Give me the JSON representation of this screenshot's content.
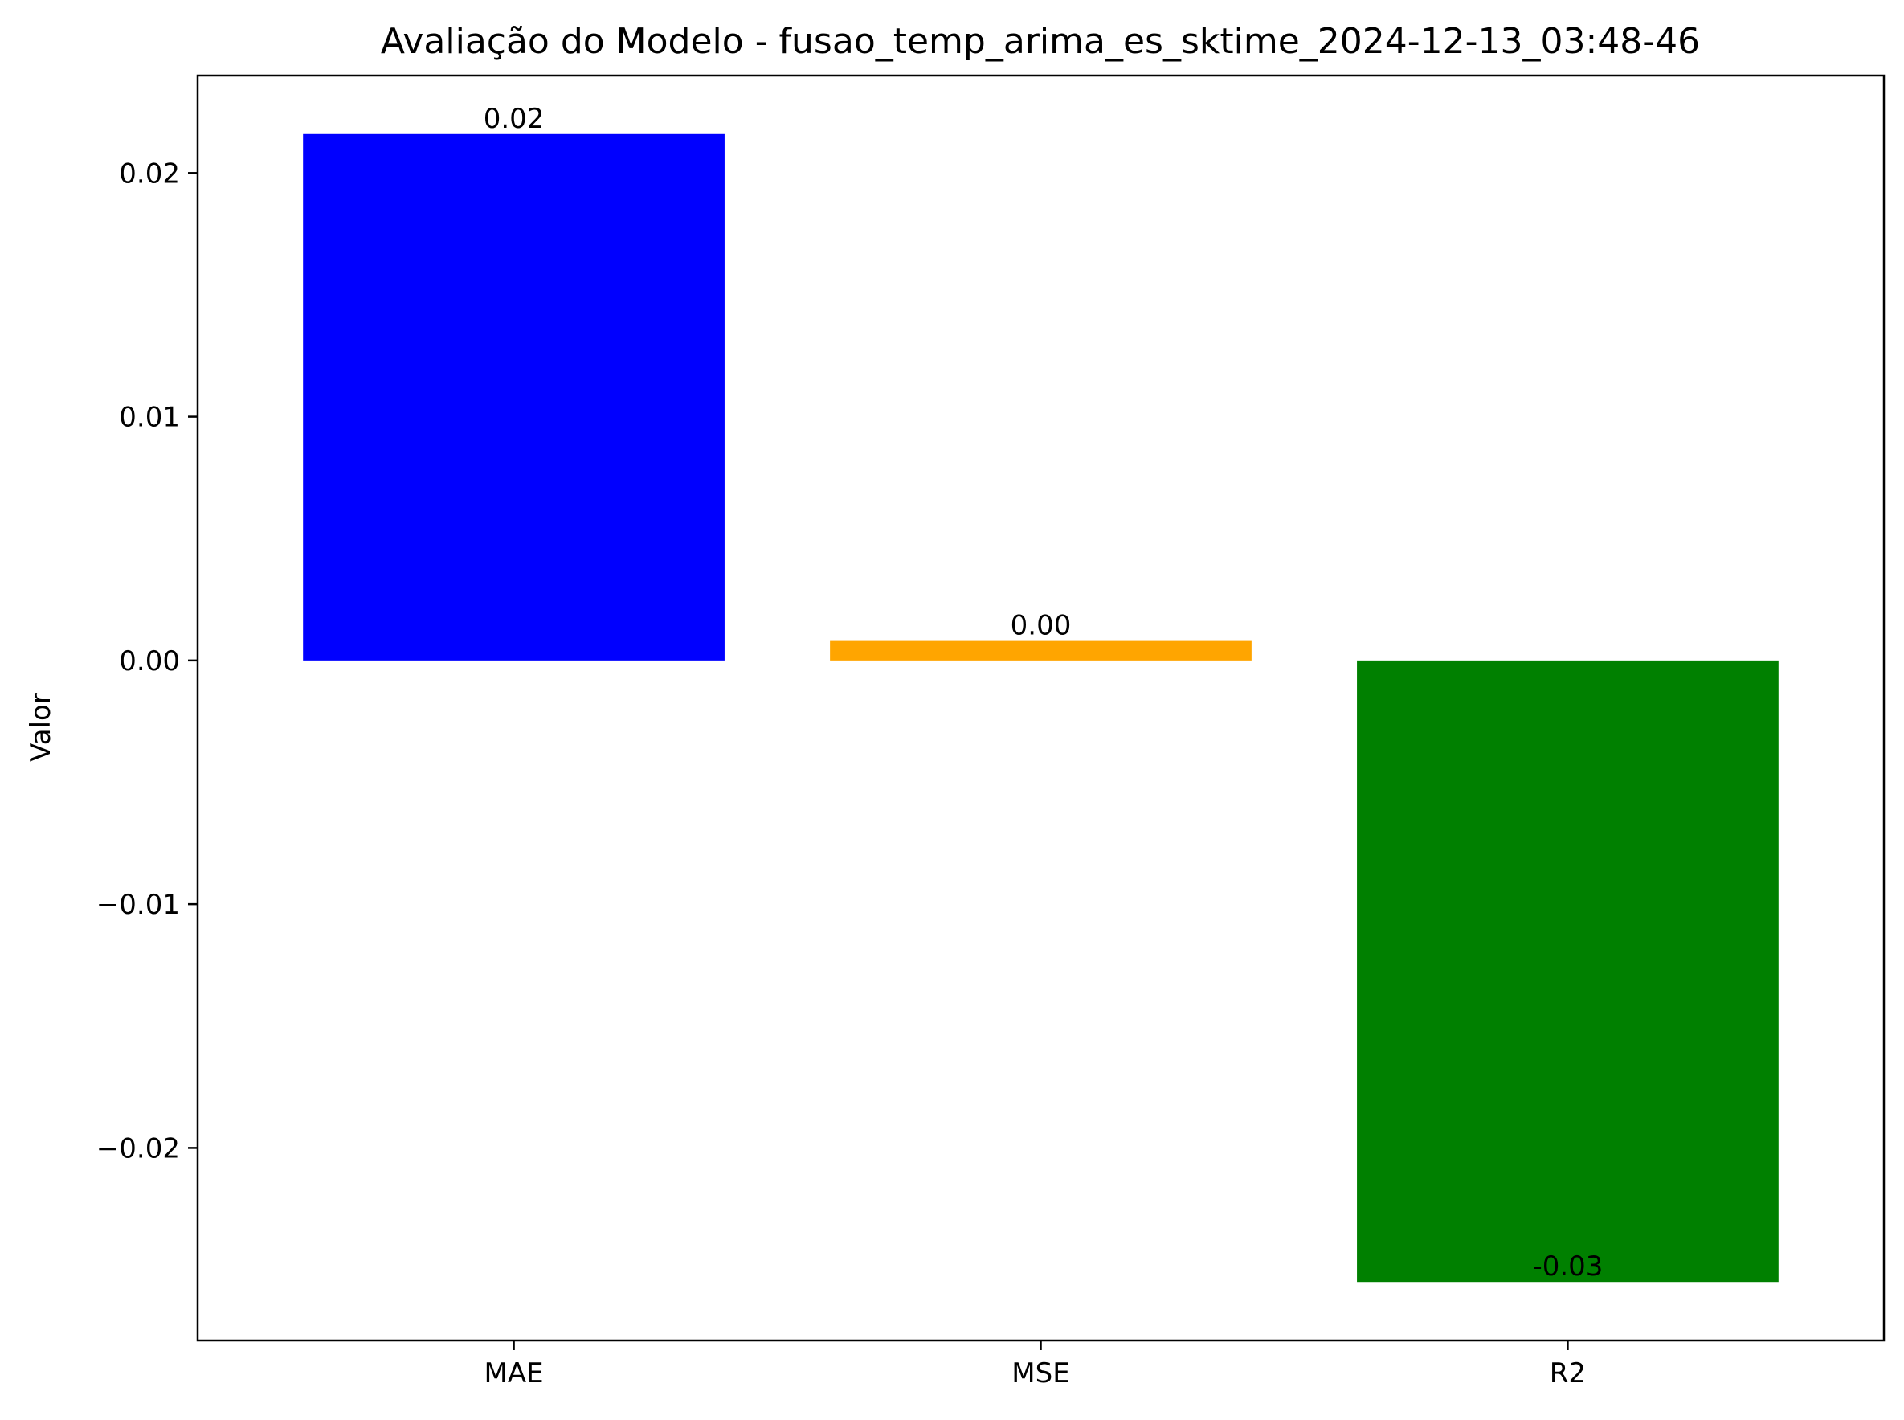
{
  "chart_data": {
    "type": "bar",
    "title": "Avaliação do Modelo - fusao_temp_arima_es_sktime_2024-12-13_03:48-46",
    "xlabel": "",
    "ylabel": "Valor",
    "categories": [
      "MAE",
      "MSE",
      "R2"
    ],
    "values": [
      0.0216,
      0.0008,
      -0.0255
    ],
    "data_labels": [
      "0.02",
      "0.00",
      "-0.03"
    ],
    "colors": [
      "#0000ff",
      "#ffa500",
      "#008000"
    ],
    "ylim": [
      -0.0279,
      0.024
    ],
    "yticks": [
      -0.02,
      -0.01,
      0.0,
      0.01,
      0.02
    ],
    "ytick_labels": [
      "−0.02",
      "−0.01",
      "0.00",
      "0.01",
      "0.02"
    ],
    "grid": false,
    "legend": "none"
  }
}
